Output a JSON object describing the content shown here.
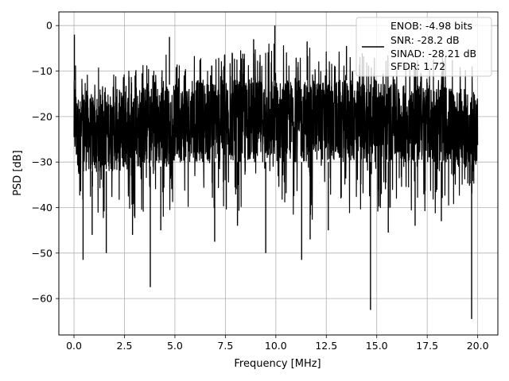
{
  "chart_data": {
    "type": "line",
    "title": "",
    "xlabel": "Frequency [MHz]",
    "ylabel": "PSD [dB]",
    "xlim": [
      -0.75,
      21.0
    ],
    "ylim": [
      -68,
      3
    ],
    "xticks": [
      0.0,
      2.5,
      5.0,
      7.5,
      10.0,
      12.5,
      15.0,
      17.5,
      20.0
    ],
    "xtick_labels": [
      "0.0",
      "2.5",
      "5.0",
      "7.5",
      "10.0",
      "12.5",
      "15.0",
      "17.5",
      "20.0"
    ],
    "yticks": [
      0,
      -10,
      -20,
      -30,
      -40,
      -50,
      -60
    ],
    "ytick_labels": [
      "0",
      "−10",
      "−20",
      "−30",
      "−40",
      "−50",
      "−60"
    ],
    "grid": true,
    "legend_placement": "top-right",
    "legend_entries": [
      "ENOB: -4.98 bits",
      "SNR: -28.2 dB",
      "SINAD: -28.21 dB",
      "SFDR: 1.72"
    ],
    "series": [
      {
        "color": "#000000",
        "envelope": {
          "x": [
            0.0,
            0.05,
            0.15,
            0.3,
            0.5,
            1.0,
            1.5,
            2.0,
            2.5,
            3.0,
            3.5,
            4.0,
            4.5,
            4.75,
            5.0,
            5.5,
            6.0,
            6.5,
            7.0,
            7.5,
            8.0,
            8.5,
            9.0,
            9.5,
            10.0,
            10.5,
            11.0,
            11.5,
            12.0,
            12.5,
            13.0,
            13.5,
            14.0,
            14.5,
            15.0,
            15.5,
            16.0,
            16.5,
            17.0,
            17.5,
            18.0,
            18.5,
            19.0,
            19.5,
            20.0
          ],
          "upper": [
            -3,
            -2,
            -11,
            -12,
            -11,
            -9,
            -9.5,
            -10,
            -9,
            -9,
            -8,
            -7.5,
            -7,
            -2.5,
            -6,
            -6.5,
            -6,
            -5.5,
            -6,
            -5.5,
            -5,
            -5.5,
            -4.5,
            -4,
            0,
            -5,
            -5.5,
            -4,
            -5.5,
            -5,
            -5.5,
            -6,
            -6,
            -6,
            -5,
            -6.5,
            -6,
            -6,
            -6,
            -7,
            -6.5,
            -7,
            -7,
            -8,
            -10
          ],
          "lower": [
            -35,
            -33,
            -40,
            -43,
            -40,
            -42,
            -44,
            -40,
            -42,
            -43,
            -41,
            -41,
            -43,
            -41,
            -40,
            -39,
            -42,
            -41,
            -41,
            -42,
            -41,
            -40,
            -39,
            -40,
            -40,
            -42,
            -43,
            -44,
            -42,
            -41,
            -40,
            -42,
            -41,
            -42,
            -41,
            -43,
            -40,
            -41,
            -40,
            -42,
            -41,
            -40,
            -39,
            -40,
            -35
          ],
          "core_hi": [
            -12,
            -12,
            -15,
            -16,
            -15,
            -15,
            -15,
            -14,
            -14,
            -14,
            -13,
            -13,
            -13,
            -13,
            -13,
            -13,
            -12,
            -12,
            -12,
            -12,
            -12,
            -12,
            -12,
            -12,
            -12,
            -12,
            -12,
            -12,
            -12,
            -12,
            -12,
            -12,
            -12,
            -12,
            -12,
            -12,
            -13,
            -13,
            -13,
            -13,
            -13,
            -13,
            -14,
            -14,
            -15
          ],
          "core_lo": [
            -30,
            -30,
            -32,
            -33,
            -32,
            -32,
            -32,
            -32,
            -32,
            -32,
            -31,
            -31,
            -31,
            -31,
            -30,
            -30,
            -30,
            -30,
            -30,
            -30,
            -30,
            -30,
            -30,
            -30,
            -30,
            -30,
            -30,
            -30,
            -30,
            -30,
            -30,
            -30,
            -30,
            -30,
            -30,
            -30,
            -30,
            -30,
            -30,
            -30,
            -30,
            -30,
            -31,
            -31,
            -30
          ]
        },
        "spikes_down": [
          {
            "x": 0.45,
            "y": -51.5
          },
          {
            "x": 1.6,
            "y": -50
          },
          {
            "x": 3.78,
            "y": -57.5
          },
          {
            "x": 6.97,
            "y": -47.5
          },
          {
            "x": 9.5,
            "y": -50
          },
          {
            "x": 11.28,
            "y": -51.5
          },
          {
            "x": 11.7,
            "y": -47
          },
          {
            "x": 14.69,
            "y": -62.5
          },
          {
            "x": 15.57,
            "y": -45.5
          },
          {
            "x": 19.7,
            "y": -64.5
          },
          {
            "x": 0.9,
            "y": -46
          },
          {
            "x": 2.9,
            "y": -46
          },
          {
            "x": 4.3,
            "y": -45
          },
          {
            "x": 8.1,
            "y": -44
          },
          {
            "x": 12.6,
            "y": -45
          },
          {
            "x": 16.9,
            "y": -44
          },
          {
            "x": 18.2,
            "y": -43
          }
        ],
        "spikes_up": [
          {
            "x": 0.02,
            "y": -2
          },
          {
            "x": 4.73,
            "y": -2.5
          },
          {
            "x": 9.95,
            "y": 0
          },
          {
            "x": 8.9,
            "y": -3
          },
          {
            "x": 11.55,
            "y": -3.5
          },
          {
            "x": 13.5,
            "y": -4.5
          }
        ]
      }
    ]
  }
}
